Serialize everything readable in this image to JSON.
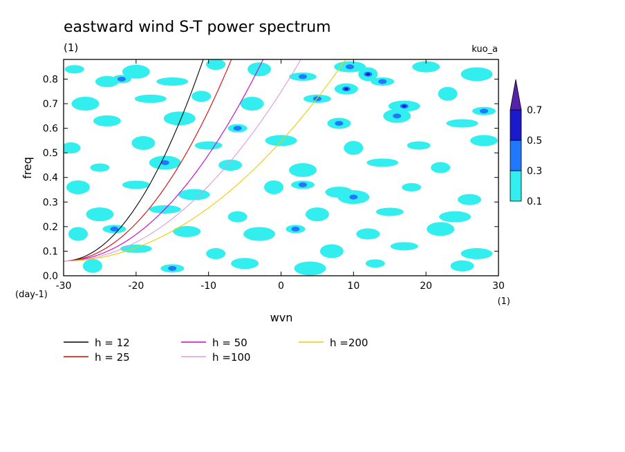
{
  "chart_data": {
    "type": "heatmap",
    "title": "eastward wind S-T power spectrum",
    "subtitle": "(1)",
    "run_label": "kuo_a",
    "xlabel": "wvn",
    "ylabel": "freq",
    "x_unit": "(1)",
    "y_unit": "(day-1)",
    "xlim": [
      -30,
      30
    ],
    "ylim": [
      0.0,
      0.88
    ],
    "x_ticks": [
      -30,
      -20,
      -10,
      0,
      10,
      20,
      30
    ],
    "y_ticks": [
      0.0,
      0.1,
      0.2,
      0.3,
      0.4,
      0.5,
      0.6,
      0.7,
      0.8
    ],
    "x_tick_labels": [
      "-30",
      "-20",
      "-10",
      "0",
      "10",
      "20",
      "30"
    ],
    "y_tick_labels": [
      "0.0",
      "0.1",
      "0.2",
      "0.3",
      "0.4",
      "0.5",
      "0.6",
      "0.7",
      "0.8"
    ],
    "colorbar": {
      "levels": [
        0.1,
        0.3,
        0.5,
        0.7
      ],
      "labels": [
        "0.1",
        "0.3",
        "0.5",
        "0.7"
      ],
      "colors": [
        "#33eeee",
        "#2277ff",
        "#1a1acc",
        "#5522aa"
      ]
    },
    "contour_blobs": [
      {
        "x": -28.5,
        "y": 0.84,
        "level": 1
      },
      {
        "x": -24,
        "y": 0.79,
        "level": 1
      },
      {
        "x": -20,
        "y": 0.83,
        "level": 1
      },
      {
        "x": -15,
        "y": 0.79,
        "level": 1
      },
      {
        "x": -9,
        "y": 0.86,
        "level": 1
      },
      {
        "x": -3,
        "y": 0.84,
        "level": 1
      },
      {
        "x": 3,
        "y": 0.81,
        "level": 2
      },
      {
        "x": 9.5,
        "y": 0.85,
        "level": 2
      },
      {
        "x": 12,
        "y": 0.82,
        "level": 3
      },
      {
        "x": 14,
        "y": 0.79,
        "level": 2
      },
      {
        "x": 20,
        "y": 0.85,
        "level": 1
      },
      {
        "x": 27,
        "y": 0.82,
        "level": 1
      },
      {
        "x": -22,
        "y": 0.8,
        "level": 2
      },
      {
        "x": 9,
        "y": 0.76,
        "level": 3
      },
      {
        "x": -27,
        "y": 0.7,
        "level": 1
      },
      {
        "x": -18,
        "y": 0.72,
        "level": 1
      },
      {
        "x": -11,
        "y": 0.73,
        "level": 1
      },
      {
        "x": -4,
        "y": 0.7,
        "level": 1
      },
      {
        "x": 5,
        "y": 0.72,
        "level": 2
      },
      {
        "x": 17,
        "y": 0.69,
        "level": 3
      },
      {
        "x": 23,
        "y": 0.74,
        "level": 1
      },
      {
        "x": 28,
        "y": 0.67,
        "level": 2
      },
      {
        "x": -24,
        "y": 0.63,
        "level": 1
      },
      {
        "x": -14,
        "y": 0.64,
        "level": 1
      },
      {
        "x": -6,
        "y": 0.6,
        "level": 2
      },
      {
        "x": 8,
        "y": 0.62,
        "level": 2
      },
      {
        "x": 16,
        "y": 0.65,
        "level": 2
      },
      {
        "x": 25,
        "y": 0.62,
        "level": 1
      },
      {
        "x": -29,
        "y": 0.52,
        "level": 1
      },
      {
        "x": -19,
        "y": 0.54,
        "level": 1
      },
      {
        "x": -10,
        "y": 0.53,
        "level": 1
      },
      {
        "x": 0,
        "y": 0.55,
        "level": 1
      },
      {
        "x": 10,
        "y": 0.52,
        "level": 1
      },
      {
        "x": 19,
        "y": 0.53,
        "level": 1
      },
      {
        "x": 28,
        "y": 0.55,
        "level": 1
      },
      {
        "x": -16,
        "y": 0.46,
        "level": 2
      },
      {
        "x": -25,
        "y": 0.44,
        "level": 1
      },
      {
        "x": -7,
        "y": 0.45,
        "level": 1
      },
      {
        "x": 3,
        "y": 0.43,
        "level": 1
      },
      {
        "x": 14,
        "y": 0.46,
        "level": 1
      },
      {
        "x": 22,
        "y": 0.44,
        "level": 1
      },
      {
        "x": -28,
        "y": 0.36,
        "level": 1
      },
      {
        "x": -20,
        "y": 0.37,
        "level": 1
      },
      {
        "x": -12,
        "y": 0.33,
        "level": 1
      },
      {
        "x": -1,
        "y": 0.36,
        "level": 1
      },
      {
        "x": 3,
        "y": 0.37,
        "level": 2
      },
      {
        "x": 8,
        "y": 0.34,
        "level": 1
      },
      {
        "x": 10,
        "y": 0.32,
        "level": 2
      },
      {
        "x": 18,
        "y": 0.36,
        "level": 1
      },
      {
        "x": 26,
        "y": 0.31,
        "level": 1
      },
      {
        "x": -25,
        "y": 0.25,
        "level": 1
      },
      {
        "x": -16,
        "y": 0.27,
        "level": 1
      },
      {
        "x": -6,
        "y": 0.24,
        "level": 1
      },
      {
        "x": 5,
        "y": 0.25,
        "level": 1
      },
      {
        "x": 15,
        "y": 0.26,
        "level": 1
      },
      {
        "x": 24,
        "y": 0.24,
        "level": 1
      },
      {
        "x": -28,
        "y": 0.17,
        "level": 1
      },
      {
        "x": -23,
        "y": 0.19,
        "level": 2
      },
      {
        "x": -13,
        "y": 0.18,
        "level": 1
      },
      {
        "x": -3,
        "y": 0.17,
        "level": 1
      },
      {
        "x": 2,
        "y": 0.19,
        "level": 2
      },
      {
        "x": 12,
        "y": 0.17,
        "level": 1
      },
      {
        "x": 22,
        "y": 0.19,
        "level": 1
      },
      {
        "x": -20,
        "y": 0.11,
        "level": 1
      },
      {
        "x": -9,
        "y": 0.09,
        "level": 1
      },
      {
        "x": 7,
        "y": 0.1,
        "level": 1
      },
      {
        "x": 17,
        "y": 0.12,
        "level": 1
      },
      {
        "x": 27,
        "y": 0.09,
        "level": 1
      },
      {
        "x": -26,
        "y": 0.04,
        "level": 1
      },
      {
        "x": -15,
        "y": 0.03,
        "level": 2
      },
      {
        "x": -5,
        "y": 0.05,
        "level": 1
      },
      {
        "x": 4,
        "y": 0.03,
        "level": 1
      },
      {
        "x": 13,
        "y": 0.05,
        "level": 1
      },
      {
        "x": 25,
        "y": 0.04,
        "level": 1
      }
    ],
    "series": [
      {
        "name": "h = 12",
        "h": 12,
        "color": "#000000"
      },
      {
        "name": "h = 25",
        "h": 25,
        "color": "#e00000"
      },
      {
        "name": "h = 50",
        "h": 50,
        "color": "#cc00cc"
      },
      {
        "name": "h =100",
        "h": 100,
        "color": "#dd99dd"
      },
      {
        "name": "h =200",
        "h": 200,
        "color": "#eecc00"
      }
    ]
  }
}
